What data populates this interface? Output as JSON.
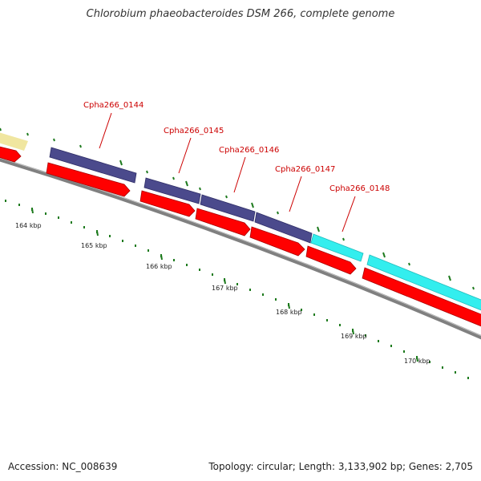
{
  "title": "Chlorobium phaeobacteroides DSM 266, complete genome",
  "footer": {
    "accession": "Accession: NC_008639",
    "summary": "Topology: circular; Length: 3,133,902 bp; Genes: 2,705"
  },
  "ticks": [
    "164 kbp",
    "165 kbp",
    "166 kbp",
    "167 kbp",
    "168 kbp",
    "169 kbp",
    "170 kbp"
  ],
  "gene_labels": [
    "Cpha266_0144",
    "Cpha266_0145",
    "Cpha266_0146",
    "Cpha266_0147",
    "Cpha266_0148"
  ],
  "colors": {
    "cds": "#ff0000",
    "feature_purple": "#4b4a8c",
    "feature_cyan": "#33eeee",
    "feature_yellow": "#f0e6a0",
    "label": "#cc0000",
    "tick": "#1d7a1d",
    "backbone": "#808080"
  }
}
